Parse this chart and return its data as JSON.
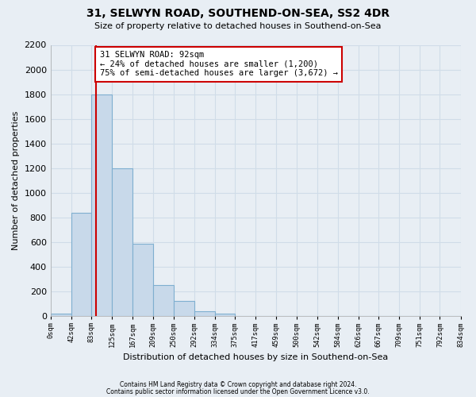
{
  "title": "31, SELWYN ROAD, SOUTHEND-ON-SEA, SS2 4DR",
  "subtitle": "Size of property relative to detached houses in Southend-on-Sea",
  "xlabel": "Distribution of detached houses by size in Southend-on-Sea",
  "ylabel": "Number of detached properties",
  "footnote1": "Contains HM Land Registry data © Crown copyright and database right 2024.",
  "footnote2": "Contains public sector information licensed under the Open Government Licence v3.0.",
  "bar_edges": [
    0,
    42,
    83,
    125,
    167,
    209,
    250,
    292,
    334,
    375,
    417,
    459,
    500,
    542,
    584,
    626,
    667,
    709,
    751,
    792,
    834
  ],
  "bar_heights": [
    20,
    840,
    1800,
    1200,
    590,
    255,
    125,
    40,
    20,
    0,
    0,
    0,
    0,
    0,
    0,
    0,
    0,
    0,
    0,
    0
  ],
  "bar_color": "#c8d9ea",
  "bar_edge_color": "#7fafd0",
  "grid_color": "#d0dce8",
  "tick_labels": [
    "0sqm",
    "42sqm",
    "83sqm",
    "125sqm",
    "167sqm",
    "209sqm",
    "250sqm",
    "292sqm",
    "334sqm",
    "375sqm",
    "417sqm",
    "459sqm",
    "500sqm",
    "542sqm",
    "584sqm",
    "626sqm",
    "667sqm",
    "709sqm",
    "751sqm",
    "792sqm",
    "834sqm"
  ],
  "ylim": [
    0,
    2200
  ],
  "yticks": [
    0,
    200,
    400,
    600,
    800,
    1000,
    1200,
    1400,
    1600,
    1800,
    2000,
    2200
  ],
  "vline_x": 92,
  "vline_color": "#cc0000",
  "annotation_title": "31 SELWYN ROAD: 92sqm",
  "annotation_line1": "← 24% of detached houses are smaller (1,200)",
  "annotation_line2": "75% of semi-detached houses are larger (3,672) →",
  "annotation_box_color": "#ffffff",
  "annotation_box_edge": "#cc0000",
  "bg_color": "#e8eef4"
}
